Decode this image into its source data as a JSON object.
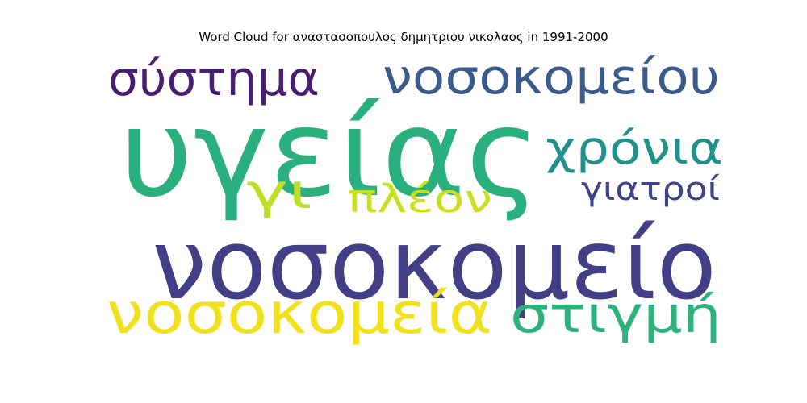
{
  "chart_data": {
    "type": "wordcloud",
    "title": "Word Cloud for αναστασοπουλος δημητριου νικολαος in 1991-2000",
    "words": [
      {
        "text": "υγείας",
        "rank": 1,
        "color": "#2ab07f"
      },
      {
        "text": "νοσοκομείο",
        "rank": 2,
        "color": "#433e85"
      },
      {
        "text": "νοσοκομεία",
        "rank": 3,
        "color": "#f0e11c"
      },
      {
        "text": "νοσοκομείου",
        "rank": 4,
        "color": "#3b5b8c"
      },
      {
        "text": "σύστημα",
        "rank": 5,
        "color": "#481f70"
      },
      {
        "text": "στιγμή",
        "rank": 6,
        "color": "#2db27d"
      },
      {
        "text": "χρόνια",
        "rank": 7,
        "color": "#21918c"
      },
      {
        "text": "πλέον",
        "rank": 8,
        "color": "#c8e020"
      },
      {
        "text": "γι",
        "rank": 9,
        "color": "#bddf26"
      },
      {
        "text": "γιατροί",
        "rank": 10,
        "color": "#404388"
      }
    ]
  }
}
